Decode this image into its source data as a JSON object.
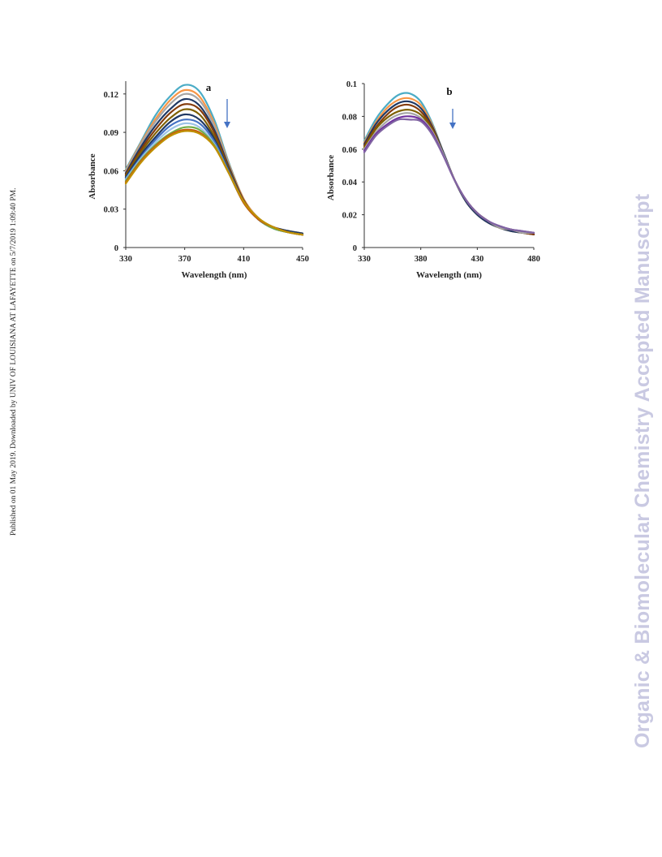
{
  "side_note": "Published on 01 May 2019. Downloaded by UNIV OF LOUISIANA AT LAFAYETTE on 5/7/2019 1:09:40 PM.",
  "watermark": "Organic & Biomolecular Chemistry Accepted Manuscript",
  "chart_data": [
    {
      "type": "line",
      "panel_label": "a",
      "xlabel": "Wavelength  (nm)",
      "ylabel": "Absorbance",
      "xlim": [
        330,
        450
      ],
      "ylim": [
        0,
        0.13
      ],
      "xticks": [
        "330",
        "370",
        "410",
        "450"
      ],
      "yticks": [
        "0",
        "0.03",
        "0.06",
        "0.09",
        "0.12"
      ],
      "grid": false,
      "arrow": "down",
      "x": [
        330,
        340,
        350,
        360,
        370,
        380,
        390,
        400,
        410,
        420,
        430,
        440,
        450
      ],
      "series": [
        {
          "color": "#4bacc6",
          "values": [
            0.061,
            0.082,
            0.103,
            0.118,
            0.127,
            0.122,
            0.1,
            0.066,
            0.038,
            0.023,
            0.016,
            0.013,
            0.011
          ]
        },
        {
          "color": "#f79646",
          "values": [
            0.06,
            0.081,
            0.1,
            0.115,
            0.123,
            0.118,
            0.097,
            0.065,
            0.038,
            0.023,
            0.016,
            0.013,
            0.011
          ]
        },
        {
          "color": "#a5a5a5",
          "values": [
            0.059,
            0.08,
            0.098,
            0.112,
            0.12,
            0.115,
            0.095,
            0.064,
            0.037,
            0.023,
            0.016,
            0.013,
            0.011
          ]
        },
        {
          "color": "#1f3864",
          "values": [
            0.058,
            0.078,
            0.095,
            0.108,
            0.116,
            0.111,
            0.092,
            0.063,
            0.037,
            0.022,
            0.016,
            0.013,
            0.011
          ]
        },
        {
          "color": "#843c0c",
          "values": [
            0.057,
            0.076,
            0.092,
            0.105,
            0.112,
            0.108,
            0.09,
            0.062,
            0.037,
            0.022,
            0.016,
            0.012,
            0.01
          ]
        },
        {
          "color": "#7f6000",
          "values": [
            0.056,
            0.074,
            0.089,
            0.101,
            0.108,
            0.104,
            0.087,
            0.061,
            0.036,
            0.022,
            0.015,
            0.012,
            0.01
          ]
        },
        {
          "color": "#203864",
          "values": [
            0.055,
            0.072,
            0.086,
            0.098,
            0.104,
            0.1,
            0.085,
            0.06,
            0.036,
            0.022,
            0.015,
            0.012,
            0.01
          ]
        },
        {
          "color": "#4472c4",
          "values": [
            0.054,
            0.07,
            0.084,
            0.095,
            0.1,
            0.097,
            0.083,
            0.059,
            0.036,
            0.022,
            0.015,
            0.012,
            0.01
          ]
        },
        {
          "color": "#9dc3e6",
          "values": [
            0.053,
            0.069,
            0.082,
            0.092,
            0.097,
            0.094,
            0.081,
            0.058,
            0.035,
            0.022,
            0.015,
            0.012,
            0.01
          ]
        },
        {
          "color": "#70ad47",
          "values": [
            0.052,
            0.068,
            0.08,
            0.089,
            0.094,
            0.092,
            0.08,
            0.058,
            0.035,
            0.022,
            0.015,
            0.012,
            0.01
          ]
        },
        {
          "color": "#c55a11",
          "values": [
            0.051,
            0.067,
            0.079,
            0.088,
            0.092,
            0.09,
            0.079,
            0.058,
            0.035,
            0.022,
            0.016,
            0.012,
            0.01
          ]
        },
        {
          "color": "#bf9000",
          "values": [
            0.05,
            0.066,
            0.078,
            0.087,
            0.091,
            0.089,
            0.079,
            0.058,
            0.036,
            0.023,
            0.016,
            0.012,
            0.01
          ]
        }
      ]
    },
    {
      "type": "line",
      "panel_label": "b",
      "xlabel": "Wavelength  (nm)",
      "ylabel": "Absorbance",
      "xlim": [
        330,
        480
      ],
      "ylim": [
        0,
        0.1
      ],
      "xticks": [
        "330",
        "380",
        "430",
        "480"
      ],
      "yticks": [
        "0",
        "0.02",
        "0.04",
        "0.06",
        "0.08",
        "0.1"
      ],
      "grid": false,
      "arrow": "down",
      "x": [
        330,
        340,
        350,
        360,
        370,
        380,
        390,
        400,
        410,
        420,
        430,
        440,
        450,
        460,
        470,
        480
      ],
      "series": [
        {
          "color": "#4bacc6",
          "values": [
            0.065,
            0.078,
            0.087,
            0.093,
            0.094,
            0.089,
            0.076,
            0.058,
            0.041,
            0.028,
            0.02,
            0.015,
            0.012,
            0.01,
            0.009,
            0.008
          ]
        },
        {
          "color": "#f79646",
          "values": [
            0.064,
            0.076,
            0.085,
            0.09,
            0.091,
            0.087,
            0.075,
            0.058,
            0.041,
            0.028,
            0.02,
            0.015,
            0.012,
            0.01,
            0.009,
            0.008
          ]
        },
        {
          "color": "#1f3864",
          "values": [
            0.063,
            0.075,
            0.083,
            0.088,
            0.089,
            0.085,
            0.074,
            0.058,
            0.041,
            0.028,
            0.02,
            0.015,
            0.012,
            0.01,
            0.009,
            0.008
          ]
        },
        {
          "color": "#843c0c",
          "values": [
            0.062,
            0.073,
            0.081,
            0.086,
            0.087,
            0.083,
            0.073,
            0.057,
            0.041,
            0.029,
            0.021,
            0.016,
            0.012,
            0.011,
            0.009,
            0.008
          ]
        },
        {
          "color": "#7f6000",
          "values": [
            0.061,
            0.072,
            0.079,
            0.083,
            0.084,
            0.081,
            0.072,
            0.057,
            0.041,
            0.029,
            0.021,
            0.016,
            0.012,
            0.011,
            0.009,
            0.009
          ]
        },
        {
          "color": "#a5a5a5",
          "values": [
            0.06,
            0.07,
            0.077,
            0.081,
            0.082,
            0.079,
            0.071,
            0.057,
            0.041,
            0.029,
            0.021,
            0.016,
            0.012,
            0.011,
            0.009,
            0.009
          ]
        },
        {
          "color": "#7030a0",
          "values": [
            0.059,
            0.069,
            0.075,
            0.079,
            0.08,
            0.078,
            0.07,
            0.056,
            0.041,
            0.029,
            0.021,
            0.016,
            0.013,
            0.011,
            0.01,
            0.009
          ]
        },
        {
          "color": "#8064a2",
          "values": [
            0.058,
            0.068,
            0.074,
            0.078,
            0.078,
            0.077,
            0.069,
            0.056,
            0.041,
            0.029,
            0.021,
            0.016,
            0.013,
            0.011,
            0.01,
            0.009
          ]
        }
      ]
    }
  ]
}
